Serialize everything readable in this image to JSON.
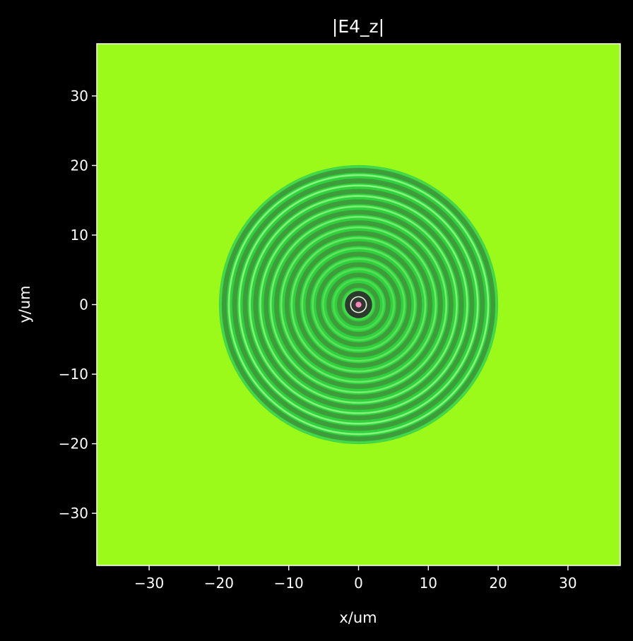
{
  "chart_data": {
    "type": "heatmap",
    "title": "|E4_z|",
    "xlabel": "x/um",
    "ylabel": "y/um",
    "xlim": [
      -37.5,
      37.5
    ],
    "ylim": [
      -37.5,
      37.5
    ],
    "xticks": [
      -30,
      -20,
      -10,
      0,
      10,
      20,
      30
    ],
    "yticks": [
      30,
      20,
      10,
      0,
      -10,
      -20,
      -30
    ],
    "xtick_labels": [
      "−30",
      "−20",
      "−10",
      "0",
      "10",
      "20",
      "30"
    ],
    "ytick_labels": [
      "30",
      "20",
      "10",
      "0",
      "−10",
      "−20",
      "−30"
    ],
    "grid": false,
    "legend": "none",
    "field": {
      "region_radius": 20,
      "ring_count": 13,
      "ring_spacing": 1.5,
      "background_color": "#9cfa1b",
      "ring_colors": [
        "#3f9a3a",
        "#2fd23c",
        "#8ef582"
      ],
      "center_color": "#f28ab4"
    },
    "colors": {
      "figure_background": "#000000",
      "axes_spine": "#ffffff",
      "text": "#ffffff"
    }
  }
}
